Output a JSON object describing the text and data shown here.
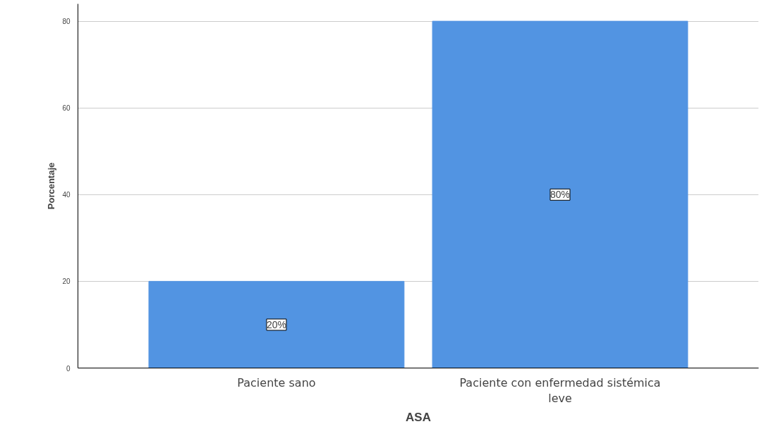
{
  "chart_data": {
    "type": "bar",
    "xlabel": "ASA",
    "ylabel": "Porcentaje",
    "categories": [
      "Paciente sano",
      "Paciente con enfermedad sistémica\nleve"
    ],
    "values": [
      20,
      80
    ],
    "color": "#5294e2",
    "value_labels": [
      "20%",
      "80%"
    ],
    "ylim": [
      0,
      84
    ],
    "yticks": [
      0,
      20,
      40,
      60,
      80
    ],
    "grid": "y"
  }
}
